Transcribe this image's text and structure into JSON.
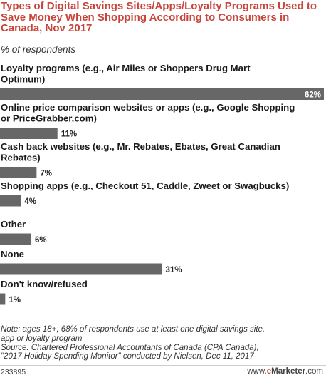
{
  "header": {
    "title": "Types of Digital Savings Sites/Apps/Loyalty Programs Used to Save Money When Shopping According to Consumers in Canada, Nov 2017",
    "subtitle": "% of respondents"
  },
  "chart_data": {
    "type": "bar",
    "orientation": "horizontal",
    "unit": "%",
    "xlim": [
      0,
      62
    ],
    "grid": false,
    "legend": "none",
    "categories": [
      [
        "Loyalty programs (e.g., Air Miles or Shoppers Drug Mart",
        "Optimum)"
      ],
      [
        "Online price comparison websites or apps (e.g., Google Shopping",
        "or PriceGrabber.com)"
      ],
      [
        "Cash back websites (e.g., Mr. Rebates, Ebates, Great Canadian",
        "Rebates)"
      ],
      [
        "Shopping apps (e.g., Checkout 51, Caddle, Zweet or Swagbucks)"
      ],
      [
        "Other"
      ],
      [
        "None"
      ],
      [
        "Don't know/refused"
      ]
    ],
    "values": [
      62,
      11,
      7,
      4,
      6,
      31,
      1
    ],
    "value_labels": [
      "62%",
      "11%",
      "7%",
      "4%",
      "6%",
      "31%",
      "1%"
    ],
    "colors": {
      "bar": "#676767",
      "label": "#222222",
      "label_inside": "#ffffff"
    }
  },
  "footer": {
    "note_lines": [
      "Note: ages 18+; 68% of respondents use at least one digital savings site,",
      "app or loyalty program",
      "Source: Chartered Professional Accountants of Canada (CPA Canada),",
      "\"2017 Holiday Spending Monitor\" conducted by Nielsen, Dec 11, 2017"
    ],
    "chart_id": "233895",
    "brand_prefix": "www.",
    "brand_accent": "e",
    "brand_name": "Marketer",
    "brand_suffix": ".com"
  }
}
